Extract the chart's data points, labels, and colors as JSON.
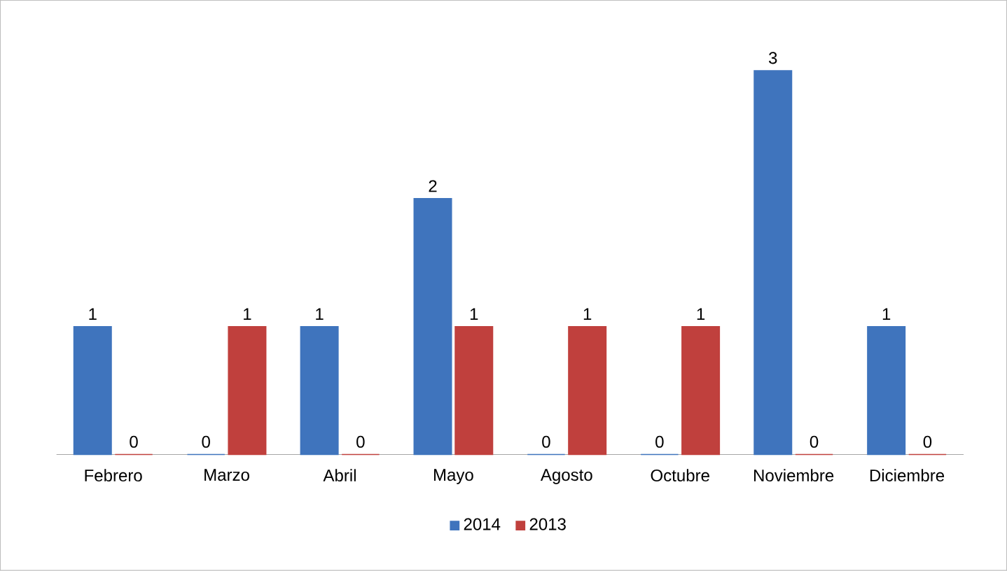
{
  "chart_data": {
    "type": "bar",
    "categories": [
      "Febrero",
      "Marzo",
      "Abril",
      "Mayo",
      "Agosto",
      "Octubre",
      "Noviembre",
      "Diciembre"
    ],
    "series": [
      {
        "name": "2014",
        "color": "#3f74bd",
        "values": [
          1,
          0,
          1,
          2,
          0,
          0,
          3,
          1
        ]
      },
      {
        "name": "2013",
        "color": "#c0403d",
        "values": [
          0,
          1,
          0,
          1,
          1,
          1,
          0,
          0
        ]
      }
    ],
    "data_labels": true,
    "legend": "bottom"
  }
}
